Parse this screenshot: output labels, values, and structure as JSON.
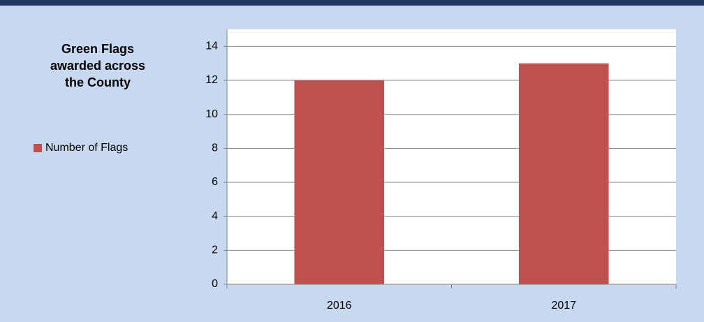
{
  "chart_data": {
    "type": "bar",
    "title": "Green Flags awarded across the County",
    "categories": [
      "2016",
      "2017"
    ],
    "series": [
      {
        "name": "Number of Flags",
        "color": "#c0504d",
        "values": [
          12,
          13
        ]
      }
    ],
    "ylim": [
      0,
      15
    ],
    "yticks": [
      0,
      2,
      4,
      6,
      8,
      10,
      12,
      14
    ],
    "grid": true,
    "legend": "left"
  }
}
